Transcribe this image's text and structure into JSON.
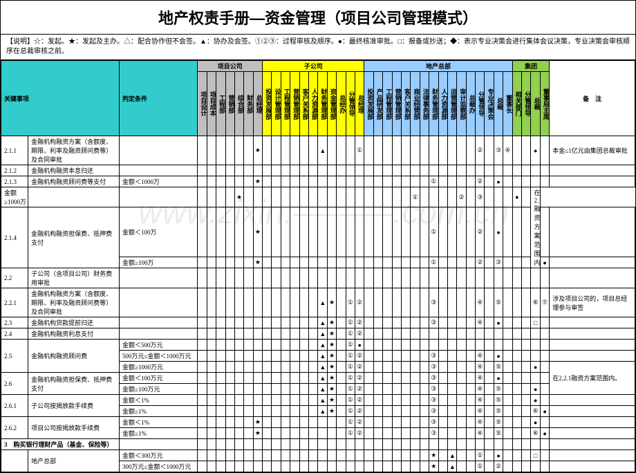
{
  "title": "地产权责手册—资金管理（项目公司管理模式）",
  "note": "【说明】☆：发起。★：发起及主办。△：配合协作但不会签。▲：协办及会签。①②③：过程审核及顺序。●：最终核准审批。□：报备或抄送；◆：表示专业决策会进行集体会议决策，专业决策会审核顺序在总裁审核之前。",
  "watermark": "www.zixin.———.com.cn",
  "groupHeaders": [
    "项目公司",
    "子公司",
    "地产总部",
    "集团"
  ],
  "cols": [
    "项目设计",
    "项目成本",
    "工程部",
    "营销部",
    "综合部",
    "财务部",
    "总经理",
    "投资发展部",
    "设计管理部",
    "工程管理部",
    "营销管理部",
    "客户关系部",
    "人力资源部",
    "财务管理部",
    "资金管理部",
    "总经办",
    "分管领导",
    "总经理",
    "投资发展部",
    "产品研发部",
    "工程管理部",
    "营销管理部",
    "客户关系部",
    "商业经营部",
    "法律事务部",
    "财务管理部",
    "人力资源部",
    "运营管理部",
    "审计监察部",
    "总裁办",
    "分管领导",
    "专业决策会",
    "总裁",
    "董事长",
    "相关部门",
    "分管领导",
    "总裁",
    "董事局主席"
  ],
  "remarkHeader": "备　注",
  "keyHeader": "关键事项",
  "condHeader": "判定条件",
  "rows": [
    {
      "id": "2.1.1",
      "item": "金融机构融资方案（含额度、期限、利率及融资顾问费等）及合同审批",
      "cond": "",
      "marks": {
        "6": "★",
        "13": "▲",
        "17": "①",
        "30": "②",
        "32": "③",
        "33": "④",
        "36": "●"
      },
      "remark": "本金≤1亿元由集团总裁审批",
      "rs": 1
    },
    {
      "id": "2.1.2",
      "item": "金融机构融资本息归还",
      "cond": "",
      "marks": {},
      "rs": 1
    },
    {
      "id": "2.1.3",
      "item": "金融机构融资顾问费等支付",
      "cond": "金额＜1000万",
      "marks": {
        "6": "★",
        "25": "①",
        "30": "②",
        "32": "●"
      },
      "rs": 1
    },
    {
      "id": "",
      "item": "",
      "cond": "金额≥1000万",
      "marks": {
        "6": "★",
        "25": "①",
        "30": "②",
        "32": "③",
        "36": "●"
      },
      "remark": "在2.1.1融资方案范围内。",
      "remark_rs": 3
    },
    {
      "id": "2.1.4",
      "item": "金融机构融资担保费、抵押费支付",
      "cond": "金额＜100万",
      "marks": {
        "6": "★",
        "25": "①",
        "30": "②",
        "32": "●"
      },
      "rs": 2
    },
    {
      "id": "",
      "item": "",
      "cond": "金额≥100万",
      "marks": {
        "6": "★",
        "25": "①",
        "30": "②",
        "32": "③",
        "36": "●"
      }
    },
    {
      "id": "2.2",
      "item": "子公司（含项目公司）财务费用审批",
      "cond": "",
      "marks": {},
      "rs": 1
    },
    {
      "id": "2.2.1",
      "item": "金融机构融资方案（含额度、期限、利率及融资顾问费等）及合同审批",
      "cond": "",
      "marks": {
        "13": "▲",
        "14": "★",
        "16": "①",
        "17": "②",
        "25": "③",
        "30": "④",
        "32": "⑤",
        "36": "⑥",
        "37": "⑦"
      },
      "remark": "涉及项目公司的，项目总经理参与审签",
      "rs": 1
    },
    {
      "id": "2.3",
      "item": "金融机构贷款提前归还",
      "cond": "",
      "marks": {
        "13": "▲",
        "14": "★",
        "16": "①",
        "17": "②",
        "25": "③",
        "30": "④",
        "32": "●",
        "36": "□"
      },
      "rs": 1
    },
    {
      "id": "2.4",
      "item": "金融机构融资利息支付",
      "cond": "",
      "marks": {
        "13": "▲",
        "14": "★",
        "16": "①",
        "17": "②"
      },
      "rs": 1
    },
    {
      "id": "2.5",
      "item": "金融机构融资顾问费",
      "cond": "金额＜500万元",
      "marks": {
        "13": "▲",
        "14": "★",
        "16": "①",
        "17": "●"
      },
      "rs": 3
    },
    {
      "id": "",
      "item": "",
      "cond": "500万元≤金额＜1000万元",
      "marks": {
        "13": "▲",
        "14": "★",
        "16": "①",
        "17": "②",
        "25": "③",
        "30": "④",
        "32": "●"
      }
    },
    {
      "id": "",
      "item": "",
      "cond": "金额≥1000万元",
      "marks": {
        "13": "▲",
        "14": "★",
        "16": "①",
        "17": "②",
        "25": "③",
        "30": "④",
        "32": "⑤",
        "36": "●"
      },
      "remark": "在2.2.1融资方案范围内。",
      "remark_rs": 3
    },
    {
      "id": "2.6",
      "item": "金融机构融资担保费、抵押费支付",
      "cond": "金额＜100万元",
      "marks": {
        "13": "▲",
        "14": "★",
        "16": "①",
        "17": "②",
        "25": "③",
        "30": "④",
        "32": "●"
      },
      "rs": 2
    },
    {
      "id": "",
      "item": "",
      "cond": "金额≥100万元",
      "marks": {
        "13": "▲",
        "14": "★",
        "16": "①",
        "17": "②",
        "25": "③",
        "30": "④",
        "32": "⑤",
        "36": "●"
      }
    },
    {
      "id": "2.6.1",
      "item": "子公司按揭放款手续费",
      "cond": "金额＜1%",
      "marks": {
        "13": "▲",
        "14": "★",
        "16": "①",
        "17": "②",
        "25": "③",
        "30": "④",
        "32": "⑤",
        "36": "●"
      },
      "rs": 2
    },
    {
      "id": "",
      "item": "",
      "cond": "金额≥1%",
      "marks": {
        "13": "▲",
        "14": "★",
        "16": "①",
        "17": "②",
        "25": "③",
        "30": "④",
        "32": "⑤",
        "36": "⑥",
        "37": "●"
      }
    },
    {
      "id": "2.6.2",
      "item": "项目公司按揭放款手续费",
      "cond": "金额＜1%",
      "marks": {
        "6": "★",
        "16": "①",
        "17": "②",
        "25": "③",
        "30": "④",
        "32": "⑤",
        "36": "●"
      },
      "rs": 2
    },
    {
      "id": "",
      "item": "",
      "cond": "金额≥1%",
      "marks": {
        "6": "★",
        "16": "①",
        "17": "②",
        "25": "③",
        "30": "④",
        "32": "⑤",
        "36": "⑥",
        "37": "●"
      }
    },
    {
      "id": "3",
      "item": "购买银行理财产品（基金、保险等）",
      "cond": "",
      "marks": {},
      "sec": true,
      "rs": 1
    },
    {
      "id": "",
      "item": "地产总部",
      "cond": "金额＜300万元",
      "marks": {
        "25": "★",
        "27": "▲",
        "30": "①",
        "32": "●",
        "36": "□"
      },
      "rs": 2
    },
    {
      "id": "",
      "item": "",
      "cond": "300万元≤金额＜1000万元",
      "marks": {
        "25": "★",
        "27": "▲",
        "30": "①",
        "32": "②"
      }
    }
  ]
}
